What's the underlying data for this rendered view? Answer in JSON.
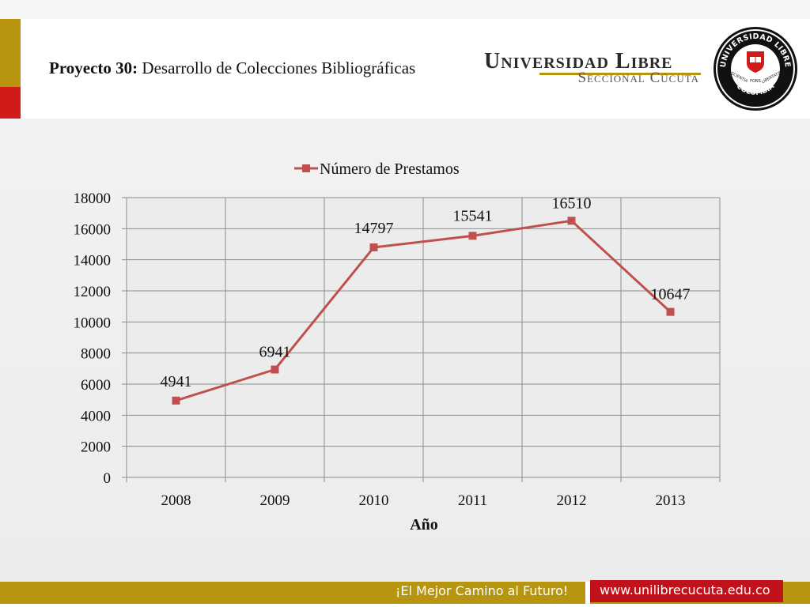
{
  "header": {
    "title_bold": "Proyecto 30:",
    "title_rest": " Desarrollo de Colecciones Bibliográficas",
    "brand_name": "Universidad Libre",
    "brand_sub": "Seccional Cúcuta",
    "seal": {
      "top_text": "UNIVERSIDAD LIBRE",
      "bottom_text": "COLOMBIA",
      "left_text": "SCIENTIA",
      "right_text": "LIBERTATIS",
      "middle_text": "FONS"
    }
  },
  "colors": {
    "accent_gold": "#b8950f",
    "accent_red": "#d11a1a",
    "series_line": "#c0504d",
    "series_marker": "#c0504d",
    "grid": "#8c8c8c"
  },
  "chart_data": {
    "type": "line",
    "categories": [
      "2008",
      "2009",
      "2010",
      "2011",
      "2012",
      "2013"
    ],
    "series": [
      {
        "name": "Número de Prestamos",
        "values": [
          4941,
          6941,
          14797,
          15541,
          16510,
          10647
        ]
      }
    ],
    "data_labels": [
      "4941",
      "6941",
      "14797",
      "15541",
      "16510",
      "10647"
    ],
    "ylim": [
      0,
      18000
    ],
    "yticks": [
      0,
      2000,
      4000,
      6000,
      8000,
      10000,
      12000,
      14000,
      16000,
      18000
    ],
    "xlabel": "Año",
    "ylabel": "",
    "grid": true,
    "legend_position": "top-center",
    "marker": "square"
  },
  "footer": {
    "slogan": "¡El Mejor Camino al Futuro!",
    "url": "www.unilibrecucuta.edu.co"
  }
}
